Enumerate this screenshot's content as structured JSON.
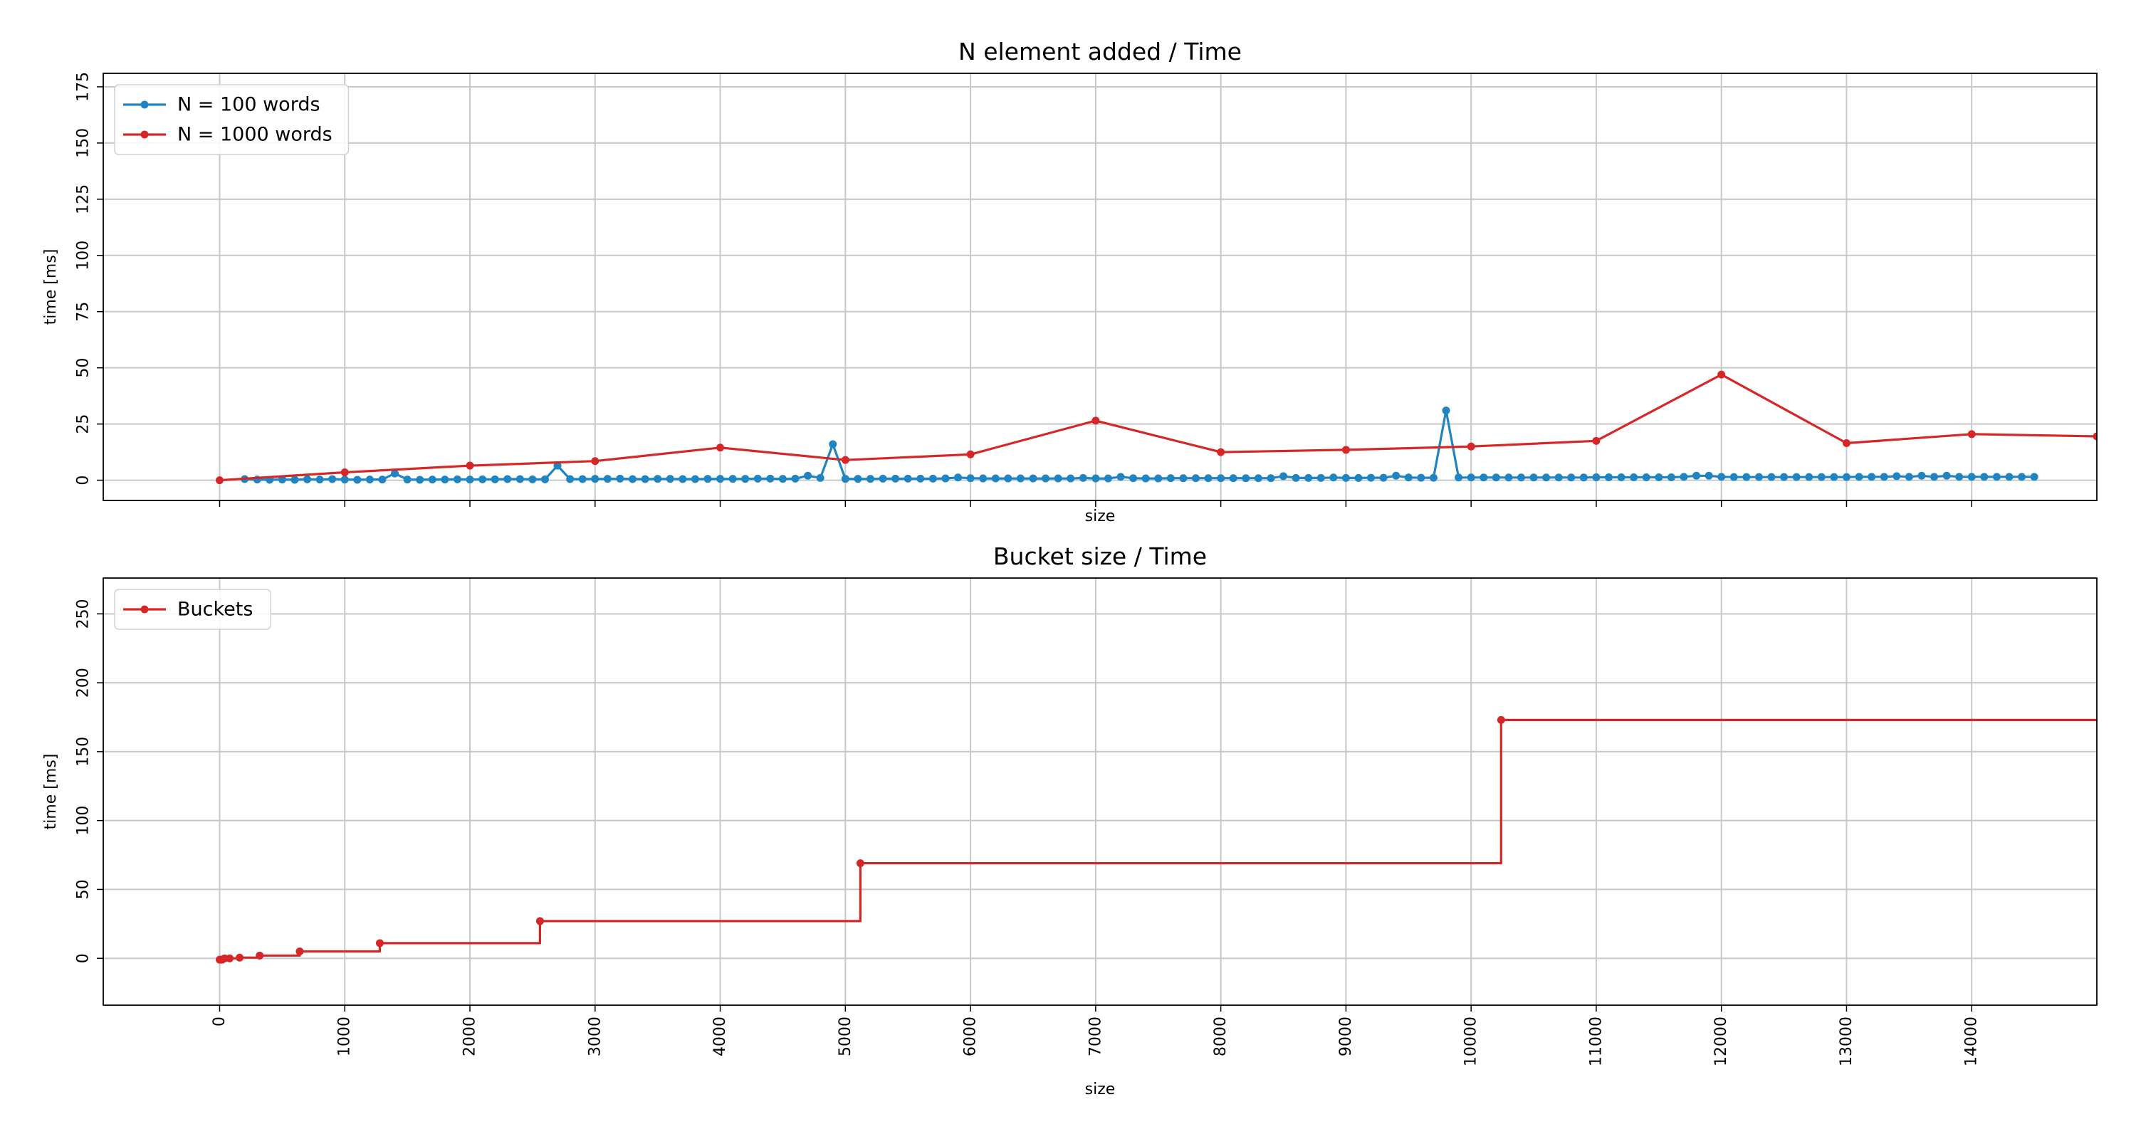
{
  "chart_data": [
    {
      "type": "line",
      "title": "N element added / Time",
      "xlabel": "size",
      "ylabel": "time [ms]",
      "xlim": [
        -930,
        15000
      ],
      "ylim": [
        -9,
        181
      ],
      "xticks": [
        0,
        1000,
        2000,
        3000,
        4000,
        5000,
        6000,
        7000,
        8000,
        9000,
        10000,
        11000,
        12000,
        13000,
        14000
      ],
      "xtick_labels_shown": false,
      "yticks": [
        0,
        25,
        50,
        75,
        100,
        125,
        150,
        175
      ],
      "ytick_labels": [
        "0",
        "25",
        "50",
        "75",
        "100",
        "125",
        "150",
        "175"
      ],
      "grid": true,
      "legend_position": "top-left",
      "series": [
        {
          "name": "N = 100 words",
          "color": "#1f84c2",
          "step": 100,
          "x_start": 200,
          "y": [
            0.5,
            0.3,
            0.2,
            0.3,
            0.2,
            0.4,
            0.3,
            0.5,
            0.3,
            0.2,
            0.3,
            0.3,
            3,
            0.3,
            0.2,
            0.3,
            0.3,
            0.4,
            0.3,
            0.4,
            0.4,
            0.5,
            0.5,
            0.4,
            0.4,
            6.5,
            0.5,
            0.5,
            0.6,
            0.6,
            0.7,
            0.5,
            0.5,
            0.6,
            0.6,
            0.5,
            0.5,
            0.6,
            0.6,
            0.6,
            0.6,
            0.7,
            0.7,
            0.6,
            0.7,
            2,
            1,
            16,
            0.6,
            0.6,
            0.6,
            0.7,
            0.7,
            0.7,
            0.7,
            0.7,
            0.8,
            1.2,
            0.9,
            0.8,
            0.8,
            0.8,
            0.8,
            0.8,
            0.8,
            0.8,
            0.8,
            1,
            0.8,
            0.8,
            1.5,
            0.9,
            0.8,
            0.8,
            0.9,
            0.9,
            0.9,
            0.9,
            0.9,
            0.9,
            0.9,
            0.9,
            0.9,
            1.8,
            1,
            1,
            1,
            1.2,
            1,
            1,
            1.1,
            1.1,
            2,
            1.2,
            1.1,
            1.1,
            31,
            1.2,
            1.2,
            1.2,
            1.2,
            1.2,
            1.2,
            1.2,
            1.2,
            1.2,
            1.2,
            1.2,
            1.3,
            1.3,
            1.3,
            1.3,
            1.3,
            1.3,
            1.3,
            1.5,
            2,
            2,
            1.5,
            1.4,
            1.4,
            1.4,
            1.4,
            1.4,
            1.4,
            1.4,
            1.4,
            1.4,
            1.4,
            1.5,
            1.5,
            1.5,
            1.8,
            1.5,
            2,
            1.5,
            2,
            1.5,
            1.5,
            1.5,
            1.5,
            1.5,
            1.5,
            1.5
          ]
        },
        {
          "name": "N = 1000 words",
          "color": "#d62728",
          "x": [
            0,
            1000,
            2000,
            3000,
            4000,
            5000,
            6000,
            7000,
            8000,
            9000,
            10000,
            11000,
            12000,
            13000,
            14000,
            15000
          ],
          "y": [
            0,
            3.5,
            6.5,
            8.5,
            14.5,
            9,
            11.5,
            26.5,
            12.5,
            13.5,
            15,
            17.5,
            47,
            16.5,
            20.5,
            19.5
          ]
        }
      ]
    },
    {
      "type": "line",
      "title": "Bucket size / Time",
      "xlabel": "size",
      "ylabel": "time [ms]",
      "xlim": [
        -930,
        15000
      ],
      "ylim": [
        -34,
        276
      ],
      "xticks": [
        0,
        1000,
        2000,
        3000,
        4000,
        5000,
        6000,
        7000,
        8000,
        9000,
        10000,
        11000,
        12000,
        13000,
        14000
      ],
      "xtick_labels": [
        "0",
        "1000",
        "2000",
        "3000",
        "4000",
        "5000",
        "6000",
        "7000",
        "8000",
        "9000",
        "10000",
        "11000",
        "12000",
        "13000",
        "14000"
      ],
      "yticks": [
        0,
        50,
        100,
        150,
        200,
        250
      ],
      "ytick_labels": [
        "0",
        "50",
        "100",
        "150",
        "200",
        "250"
      ],
      "grid": true,
      "legend_position": "top-left",
      "series": [
        {
          "name": "Buckets",
          "color": "#d62728",
          "drawstyle": "steps-post",
          "x": [
            0,
            10,
            20,
            40,
            80,
            160,
            320,
            640,
            1280,
            2560,
            5120,
            10240
          ],
          "y": [
            -1,
            -1,
            -1,
            0,
            0,
            0.5,
            2,
            5,
            11,
            27,
            69,
            173
          ],
          "markers_at": [
            0,
            10,
            20,
            40,
            80,
            160,
            320,
            640,
            1280,
            2560,
            5120,
            10240
          ],
          "extends_to_x": 15000
        }
      ]
    }
  ]
}
